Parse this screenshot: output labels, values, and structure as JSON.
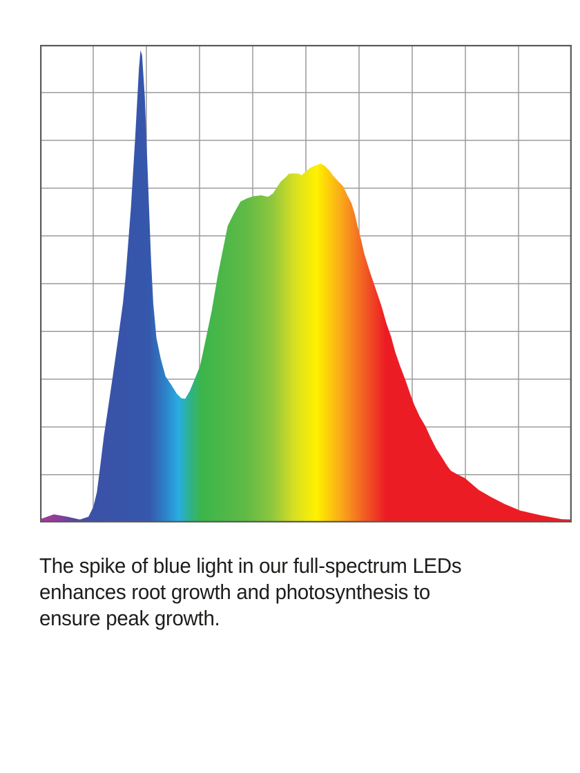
{
  "page": {
    "background": "#ffffff"
  },
  "chart_data": {
    "type": "area",
    "title": "",
    "xlabel": "",
    "ylabel": "",
    "legend": "none",
    "axis_tick_labels": "none",
    "grid": {
      "columns": 10,
      "rows": 10,
      "line_color": "#9a9a9a",
      "border_color": "#5c5c5c"
    },
    "xlim_norm": [
      0,
      1
    ],
    "ylim_norm": [
      0,
      1
    ],
    "series": [
      {
        "name": "full-spectrum LED relative intensity",
        "points": [
          [
            0.0,
            0.007
          ],
          [
            0.026,
            0.017
          ],
          [
            0.052,
            0.012
          ],
          [
            0.075,
            0.006
          ],
          [
            0.091,
            0.012
          ],
          [
            0.1,
            0.032
          ],
          [
            0.107,
            0.064
          ],
          [
            0.113,
            0.116
          ],
          [
            0.12,
            0.18
          ],
          [
            0.129,
            0.247
          ],
          [
            0.136,
            0.3
          ],
          [
            0.146,
            0.378
          ],
          [
            0.156,
            0.46
          ],
          [
            0.161,
            0.516
          ],
          [
            0.171,
            0.661
          ],
          [
            0.179,
            0.806
          ],
          [
            0.186,
            0.95
          ],
          [
            0.189,
            0.989
          ],
          [
            0.192,
            0.978
          ],
          [
            0.197,
            0.891
          ],
          [
            0.201,
            0.776
          ],
          [
            0.205,
            0.66
          ],
          [
            0.209,
            0.545
          ],
          [
            0.213,
            0.458
          ],
          [
            0.219,
            0.386
          ],
          [
            0.227,
            0.343
          ],
          [
            0.236,
            0.306
          ],
          [
            0.247,
            0.288
          ],
          [
            0.257,
            0.27
          ],
          [
            0.266,
            0.26
          ],
          [
            0.273,
            0.259
          ],
          [
            0.282,
            0.276
          ],
          [
            0.292,
            0.303
          ],
          [
            0.301,
            0.328
          ],
          [
            0.314,
            0.396
          ],
          [
            0.323,
            0.444
          ],
          [
            0.334,
            0.516
          ],
          [
            0.343,
            0.566
          ],
          [
            0.353,
            0.621
          ],
          [
            0.364,
            0.646
          ],
          [
            0.377,
            0.672
          ],
          [
            0.39,
            0.679
          ],
          [
            0.401,
            0.683
          ],
          [
            0.416,
            0.685
          ],
          [
            0.429,
            0.682
          ],
          [
            0.438,
            0.689
          ],
          [
            0.447,
            0.704
          ],
          [
            0.453,
            0.714
          ],
          [
            0.461,
            0.722
          ],
          [
            0.468,
            0.73
          ],
          [
            0.478,
            0.731
          ],
          [
            0.487,
            0.73
          ],
          [
            0.492,
            0.727
          ],
          [
            0.5,
            0.735
          ],
          [
            0.509,
            0.743
          ],
          [
            0.519,
            0.748
          ],
          [
            0.528,
            0.751
          ],
          [
            0.535,
            0.747
          ],
          [
            0.544,
            0.737
          ],
          [
            0.552,
            0.725
          ],
          [
            0.561,
            0.714
          ],
          [
            0.57,
            0.704
          ],
          [
            0.578,
            0.685
          ],
          [
            0.586,
            0.668
          ],
          [
            0.592,
            0.646
          ],
          [
            0.597,
            0.621
          ],
          [
            0.604,
            0.591
          ],
          [
            0.61,
            0.562
          ],
          [
            0.617,
            0.537
          ],
          [
            0.623,
            0.516
          ],
          [
            0.632,
            0.487
          ],
          [
            0.642,
            0.454
          ],
          [
            0.652,
            0.415
          ],
          [
            0.66,
            0.39
          ],
          [
            0.668,
            0.357
          ],
          [
            0.677,
            0.328
          ],
          [
            0.687,
            0.299
          ],
          [
            0.696,
            0.27
          ],
          [
            0.704,
            0.246
          ],
          [
            0.714,
            0.222
          ],
          [
            0.725,
            0.201
          ],
          [
            0.734,
            0.179
          ],
          [
            0.745,
            0.155
          ],
          [
            0.756,
            0.136
          ],
          [
            0.766,
            0.118
          ],
          [
            0.773,
            0.108
          ],
          [
            0.786,
            0.1
          ],
          [
            0.799,
            0.093
          ],
          [
            0.825,
            0.068
          ],
          [
            0.847,
            0.054
          ],
          [
            0.873,
            0.039
          ],
          [
            0.903,
            0.025
          ],
          [
            0.942,
            0.015
          ],
          [
            0.981,
            0.007
          ],
          [
            1.0,
            0.006
          ]
        ]
      }
    ],
    "fill_gradient": [
      {
        "offset": 0.0,
        "color": "#A83A97"
      },
      {
        "offset": 0.035,
        "color": "#8C3D9B"
      },
      {
        "offset": 0.062,
        "color": "#5847A5"
      },
      {
        "offset": 0.1,
        "color": "#3B51A7"
      },
      {
        "offset": 0.205,
        "color": "#3557AC"
      },
      {
        "offset": 0.238,
        "color": "#2C86CB"
      },
      {
        "offset": 0.26,
        "color": "#29ACE3"
      },
      {
        "offset": 0.283,
        "color": "#2FB287"
      },
      {
        "offset": 0.303,
        "color": "#3BB54B"
      },
      {
        "offset": 0.385,
        "color": "#5FBA46"
      },
      {
        "offset": 0.435,
        "color": "#8CC63F"
      },
      {
        "offset": 0.478,
        "color": "#D7DF23"
      },
      {
        "offset": 0.52,
        "color": "#FFF100"
      },
      {
        "offset": 0.571,
        "color": "#F9A11B"
      },
      {
        "offset": 0.613,
        "color": "#F15824"
      },
      {
        "offset": 0.65,
        "color": "#EC1C24"
      },
      {
        "offset": 1.0,
        "color": "#EC1C24"
      }
    ]
  },
  "caption": {
    "color": "#1d1d1b",
    "lines": [
      "The spike of blue light in our full-spectrum LEDs",
      "enhances root growth and photosynthesis to",
      "ensure peak growth."
    ],
    "text": "The spike of blue light in our full-spectrum LEDs enhances root growth and photosynthesis to ensure peak growth."
  }
}
